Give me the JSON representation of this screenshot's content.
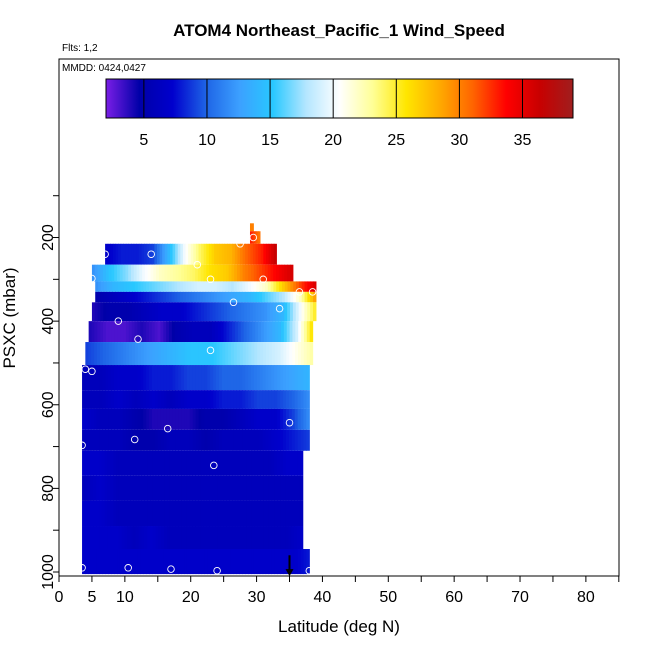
{
  "chart_data": {
    "type": "heatmap",
    "title": "ATOM4 Northeast_Pacific_1 Wind_Speed",
    "flights_note": "Flts: 1,2",
    "dates_note": "MMDD: 0424,0427",
    "xlabel": "Latitude (deg N)",
    "ylabel": "PSXC (mbar)",
    "xlim": [
      0,
      85
    ],
    "ylim": [
      1000,
      100
    ],
    "x_ticks": [
      0,
      5,
      10,
      20,
      30,
      40,
      50,
      60,
      70,
      80
    ],
    "y_ticks": [
      200,
      400,
      600,
      800,
      1000
    ],
    "colorbar": {
      "range": [
        2,
        39
      ],
      "ticks": [
        5,
        10,
        15,
        20,
        25,
        30,
        35
      ],
      "colors": [
        "#7a1ee6",
        "#0000a8",
        "#0000cd",
        "#1e64e6",
        "#3ca0ff",
        "#28c8ff",
        "#b4e6ff",
        "#ffffff",
        "#ffff96",
        "#ffe600",
        "#ffaa00",
        "#ff6400",
        "#ff0000",
        "#c80000",
        "#a01e1e"
      ]
    },
    "grid": false,
    "profile_rows": [
      {
        "p_top": 166,
        "p_bot": 185,
        "lat_start": 29.0,
        "lat_end": 29.5,
        "values": [
          30
        ]
      },
      {
        "p_top": 185,
        "p_bot": 215,
        "lat_start": 29.0,
        "lat_end": 30.5,
        "values": [
          33,
          30
        ]
      },
      {
        "p_top": 215,
        "p_bot": 265,
        "lat_start": 7.0,
        "lat_end": 33.0,
        "values": [
          7,
          8,
          8,
          9,
          14,
          20,
          24,
          27,
          28,
          31,
          33,
          37
        ]
      },
      {
        "p_top": 265,
        "p_bot": 305,
        "lat_start": 5.0,
        "lat_end": 35.5,
        "values": [
          12,
          15,
          17,
          20,
          22,
          23,
          24,
          26,
          27,
          30,
          32,
          34,
          36
        ]
      },
      {
        "p_top": 305,
        "p_bot": 330,
        "lat_start": 5.5,
        "lat_end": 39.0,
        "values": [
          12,
          14,
          15,
          16,
          17,
          18,
          19,
          19,
          18,
          20,
          22,
          27,
          32,
          36
        ]
      },
      {
        "p_top": 330,
        "p_bot": 355,
        "lat_start": 5.5,
        "lat_end": 39.0,
        "values": [
          5,
          6,
          7,
          8,
          9,
          10,
          11,
          12,
          13,
          14,
          16,
          18,
          22,
          30
        ]
      },
      {
        "p_top": 355,
        "p_bot": 400,
        "lat_start": 5.0,
        "lat_end": 39.0,
        "values": [
          4,
          5,
          5,
          6,
          7,
          7,
          8,
          9,
          10,
          11,
          12,
          14,
          20,
          26
        ]
      },
      {
        "p_top": 400,
        "p_bot": 450,
        "lat_start": 4.5,
        "lat_end": 38.5,
        "values": [
          4,
          3,
          3,
          4,
          3,
          5,
          6,
          6,
          8,
          10,
          12,
          14,
          19,
          27
        ]
      },
      {
        "p_top": 450,
        "p_bot": 505,
        "lat_start": 4.0,
        "lat_end": 38.5,
        "values": [
          9,
          10,
          11,
          12,
          13,
          14,
          15,
          15,
          16,
          17,
          18,
          19,
          21,
          23
        ]
      },
      {
        "p_top": 505,
        "p_bot": 565,
        "lat_start": 3.5,
        "lat_end": 38.0,
        "values": [
          6,
          6,
          7,
          7,
          8,
          8,
          9,
          9,
          10,
          10,
          11,
          12,
          13,
          14
        ]
      },
      {
        "p_top": 565,
        "p_bot": 610,
        "lat_start": 3.5,
        "lat_end": 38.0,
        "values": [
          6,
          6,
          7,
          6,
          7,
          6,
          7,
          7,
          8,
          8,
          9,
          9,
          10,
          12
        ]
      },
      {
        "p_top": 610,
        "p_bot": 660,
        "lat_start": 3.5,
        "lat_end": 38.0,
        "values": [
          7,
          6,
          6,
          5,
          4,
          4,
          4,
          5,
          5,
          6,
          7,
          7,
          9,
          12
        ]
      },
      {
        "p_top": 660,
        "p_bot": 710,
        "lat_start": 3.5,
        "lat_end": 38.0,
        "values": [
          6,
          6,
          6,
          5,
          5,
          6,
          6,
          5,
          6,
          6,
          6,
          7,
          8,
          9
        ]
      },
      {
        "p_top": 710,
        "p_bot": 770,
        "lat_start": 3.5,
        "lat_end": 37.0,
        "values": [
          7,
          7,
          6,
          6,
          6,
          6,
          6,
          6,
          6,
          6,
          6,
          6,
          7,
          7
        ]
      },
      {
        "p_top": 770,
        "p_bot": 830,
        "lat_start": 3.5,
        "lat_end": 37.0,
        "values": [
          6,
          7,
          6,
          6,
          6,
          6,
          6,
          6,
          6,
          6,
          6,
          6,
          6,
          6
        ]
      },
      {
        "p_top": 830,
        "p_bot": 890,
        "lat_start": 3.5,
        "lat_end": 37.0,
        "values": [
          7,
          7,
          6,
          6,
          6,
          6,
          6,
          6,
          6,
          6,
          6,
          6,
          6,
          6
        ]
      },
      {
        "p_top": 890,
        "p_bot": 945,
        "lat_start": 3.5,
        "lat_end": 37.0,
        "values": [
          7,
          7,
          7,
          6,
          7,
          6,
          6,
          6,
          6,
          6,
          6,
          6,
          6,
          7
        ]
      },
      {
        "p_top": 945,
        "p_bot": 1005,
        "lat_start": 3.5,
        "lat_end": 38.0,
        "values": [
          7,
          7,
          7,
          7,
          7,
          7,
          7,
          7,
          7,
          7,
          7,
          7,
          7,
          8
        ]
      }
    ],
    "marker_points": [
      {
        "x": 7.0,
        "y": 240
      },
      {
        "x": 14.0,
        "y": 240
      },
      {
        "x": 21.0,
        "y": 265
      },
      {
        "x": 27.5,
        "y": 215
      },
      {
        "x": 29.5,
        "y": 200
      },
      {
        "x": 5.0,
        "y": 298
      },
      {
        "x": 23.0,
        "y": 300
      },
      {
        "x": 31.0,
        "y": 300
      },
      {
        "x": 26.5,
        "y": 355
      },
      {
        "x": 33.5,
        "y": 370
      },
      {
        "x": 36.5,
        "y": 330
      },
      {
        "x": 38.5,
        "y": 330
      },
      {
        "x": 9.0,
        "y": 400
      },
      {
        "x": 12.0,
        "y": 443
      },
      {
        "x": 23.0,
        "y": 470
      },
      {
        "x": 4.0,
        "y": 515
      },
      {
        "x": 5.0,
        "y": 520
      },
      {
        "x": 3.5,
        "y": 697
      },
      {
        "x": 11.5,
        "y": 683
      },
      {
        "x": 16.5,
        "y": 657
      },
      {
        "x": 35.0,
        "y": 643
      },
      {
        "x": 23.5,
        "y": 745
      },
      {
        "x": 38.0,
        "y": 880
      },
      {
        "x": 3.5,
        "y": 990
      },
      {
        "x": 10.5,
        "y": 990
      },
      {
        "x": 17.0,
        "y": 993
      },
      {
        "x": 24.0,
        "y": 997
      },
      {
        "x": 38.0,
        "y": 997
      }
    ],
    "arrow_marker": {
      "x": 35.0,
      "y_from": 960,
      "y_to": 1010
    }
  }
}
